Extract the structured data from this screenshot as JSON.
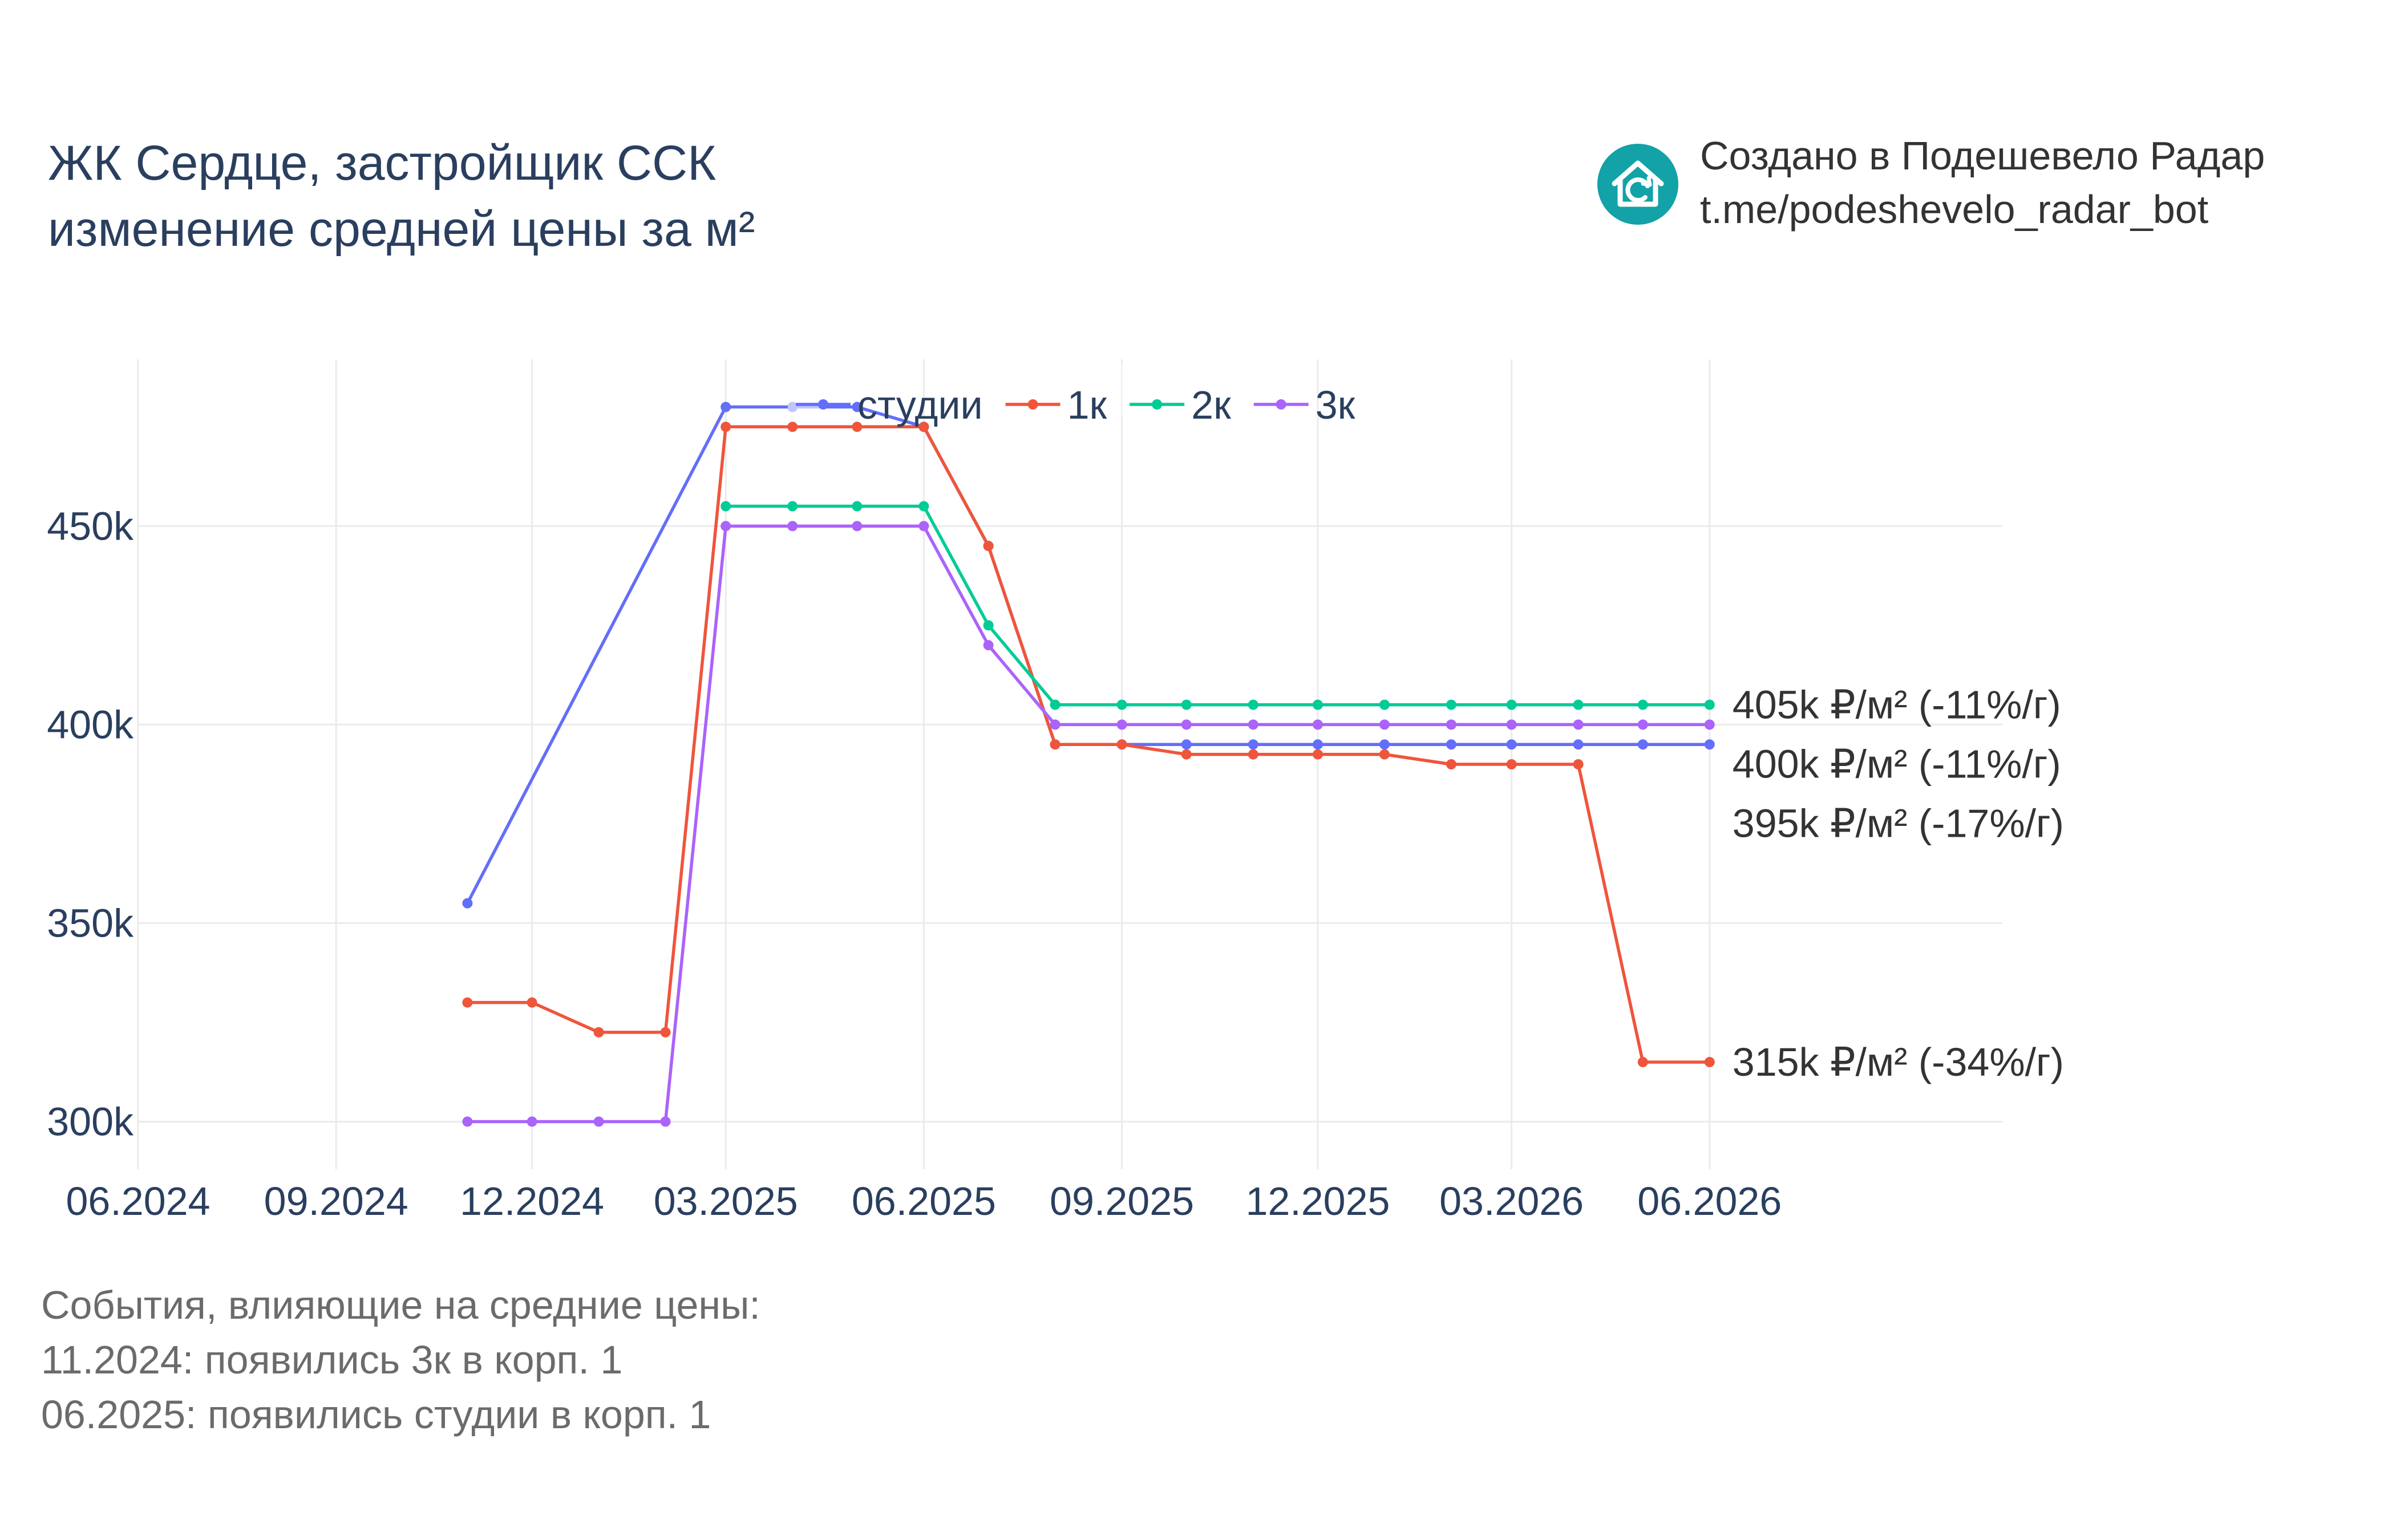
{
  "header": {
    "title_line1": "ЖК Сердце, застройщик ССК",
    "title_line2": "изменение средней цены за м²"
  },
  "branding": {
    "line1": "Создано в Подешевело Радар",
    "line2": "t.me/podeshevelo_radar_bot",
    "logo_icon": "house-refresh-icon",
    "logo_color": "#12a2a8"
  },
  "events": {
    "heading": "События, влияющие на средние цены:",
    "items": [
      "11.2024: появились 3к в корп. 1",
      "06.2025: появились студии в корп. 1"
    ]
  },
  "chart_data": {
    "type": "line",
    "x_ticks": [
      "06.2024",
      "09.2024",
      "12.2024",
      "03.2025",
      "06.2025",
      "09.2025",
      "12.2025",
      "03.2026",
      "06.2026"
    ],
    "y_ticks": [
      300000,
      350000,
      400000,
      450000
    ],
    "y_tick_labels": [
      "300k",
      "350k",
      "400k",
      "450k"
    ],
    "ylim": [
      288000,
      492000
    ],
    "grid": true,
    "legend_position": "top",
    "series": [
      {
        "name": "студии",
        "color": "#636efa",
        "points": [
          [
            "2024-11-01",
            355000
          ],
          [
            "2025-03-01",
            480000
          ],
          [
            "2025-04-01",
            480000
          ],
          [
            "2025-05-01",
            480000
          ],
          [
            "2025-06-01",
            475000
          ],
          [
            "2025-07-01",
            445000
          ],
          [
            "2025-08-01",
            395000
          ],
          [
            "2025-09-01",
            395000
          ],
          [
            "2025-10-01",
            395000
          ],
          [
            "2025-11-01",
            395000
          ],
          [
            "2025-12-01",
            395000
          ],
          [
            "2026-01-01",
            395000
          ],
          [
            "2026-02-01",
            395000
          ],
          [
            "2026-03-01",
            395000
          ],
          [
            "2026-04-01",
            395000
          ],
          [
            "2026-05-01",
            395000
          ],
          [
            "2026-06-01",
            395000
          ]
        ]
      },
      {
        "name": "1к",
        "color": "#ef553b",
        "points": [
          [
            "2024-11-01",
            330000
          ],
          [
            "2024-12-01",
            330000
          ],
          [
            "2025-01-01",
            322500
          ],
          [
            "2025-02-01",
            322500
          ],
          [
            "2025-03-01",
            475000
          ],
          [
            "2025-04-01",
            475000
          ],
          [
            "2025-05-01",
            475000
          ],
          [
            "2025-06-01",
            475000
          ],
          [
            "2025-07-01",
            445000
          ],
          [
            "2025-08-01",
            395000
          ],
          [
            "2025-09-01",
            395000
          ],
          [
            "2025-10-01",
            392500
          ],
          [
            "2025-11-01",
            392500
          ],
          [
            "2025-12-01",
            392500
          ],
          [
            "2026-01-01",
            392500
          ],
          [
            "2026-02-01",
            390000
          ],
          [
            "2026-03-01",
            390000
          ],
          [
            "2026-04-01",
            390000
          ],
          [
            "2026-05-01",
            315000
          ],
          [
            "2026-06-01",
            315000
          ]
        ]
      },
      {
        "name": "2к",
        "color": "#00cc96",
        "points": [
          [
            "2025-03-01",
            455000
          ],
          [
            "2025-04-01",
            455000
          ],
          [
            "2025-05-01",
            455000
          ],
          [
            "2025-06-01",
            455000
          ],
          [
            "2025-07-01",
            425000
          ],
          [
            "2025-08-01",
            405000
          ],
          [
            "2025-09-01",
            405000
          ],
          [
            "2025-10-01",
            405000
          ],
          [
            "2025-11-01",
            405000
          ],
          [
            "2025-12-01",
            405000
          ],
          [
            "2026-01-01",
            405000
          ],
          [
            "2026-02-01",
            405000
          ],
          [
            "2026-03-01",
            405000
          ],
          [
            "2026-04-01",
            405000
          ],
          [
            "2026-05-01",
            405000
          ],
          [
            "2026-06-01",
            405000
          ]
        ]
      },
      {
        "name": "3к",
        "color": "#ab63fa",
        "points": [
          [
            "2024-11-01",
            300000
          ],
          [
            "2024-12-01",
            300000
          ],
          [
            "2025-01-01",
            300000
          ],
          [
            "2025-02-01",
            300000
          ],
          [
            "2025-03-01",
            450000
          ],
          [
            "2025-04-01",
            450000
          ],
          [
            "2025-05-01",
            450000
          ],
          [
            "2025-06-01",
            450000
          ],
          [
            "2025-07-01",
            420000
          ],
          [
            "2025-08-01",
            400000
          ],
          [
            "2025-09-01",
            400000
          ],
          [
            "2025-10-01",
            400000
          ],
          [
            "2025-11-01",
            400000
          ],
          [
            "2025-12-01",
            400000
          ],
          [
            "2026-01-01",
            400000
          ],
          [
            "2026-02-01",
            400000
          ],
          [
            "2026-03-01",
            400000
          ],
          [
            "2026-04-01",
            400000
          ],
          [
            "2026-05-01",
            400000
          ],
          [
            "2026-06-01",
            400000
          ]
        ]
      }
    ],
    "end_labels": [
      {
        "text": "405k ₽/м² (-11%/г)",
        "value": 405000
      },
      {
        "text": "400k ₽/м² (-11%/г)",
        "value": 400000
      },
      {
        "text": "395k ₽/м² (-17%/г)",
        "value": 395000
      },
      {
        "text": "315k ₽/м² (-34%/г)",
        "value": 315000
      }
    ]
  }
}
